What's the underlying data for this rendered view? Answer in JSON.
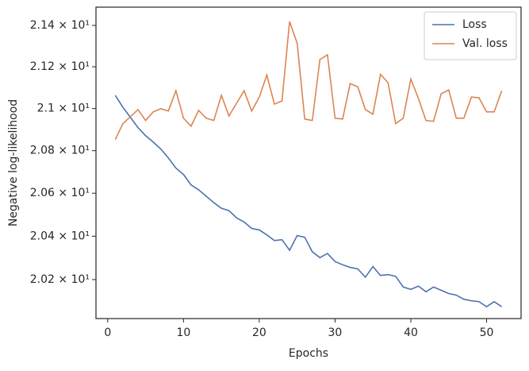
{
  "chart_data": {
    "type": "line",
    "xlabel": "Epochs",
    "ylabel": "Negative log-likelihood",
    "yscale": "log",
    "grid": false,
    "legend": "upper right",
    "x": [
      1,
      2,
      3,
      4,
      5,
      6,
      7,
      8,
      9,
      10,
      11,
      12,
      13,
      14,
      15,
      16,
      17,
      18,
      19,
      20,
      21,
      22,
      23,
      24,
      25,
      26,
      27,
      28,
      29,
      30,
      31,
      32,
      33,
      34,
      35,
      36,
      37,
      38,
      39,
      40,
      41,
      42,
      43,
      44,
      45,
      46,
      47,
      48,
      49,
      50,
      51,
      52
    ],
    "series": [
      {
        "name": "Loss",
        "color": "#4c72b0",
        "values": [
          21.063,
          21.006,
          20.958,
          20.909,
          20.871,
          20.841,
          20.808,
          20.766,
          20.718,
          20.688,
          20.639,
          20.616,
          20.586,
          20.556,
          20.53,
          20.519,
          20.485,
          20.466,
          20.436,
          20.429,
          20.406,
          20.38,
          20.384,
          20.335,
          20.403,
          20.395,
          20.328,
          20.301,
          20.32,
          20.283,
          20.268,
          20.256,
          20.249,
          20.211,
          20.26,
          20.219,
          20.223,
          20.215,
          20.166,
          20.155,
          20.17,
          20.144,
          20.166,
          20.151,
          20.136,
          20.129,
          20.11,
          20.103,
          20.099,
          20.076,
          20.099,
          20.076
        ]
      },
      {
        "name": "Val. loss",
        "color": "#dd8452",
        "values": [
          20.853,
          20.928,
          20.961,
          20.995,
          20.943,
          20.984,
          20.999,
          20.988,
          21.085,
          20.954,
          20.916,
          20.991,
          20.954,
          20.943,
          21.063,
          20.965,
          21.025,
          21.085,
          20.988,
          21.055,
          21.16,
          21.021,
          21.036,
          21.419,
          21.314,
          20.95,
          20.943,
          21.235,
          21.258,
          20.954,
          20.95,
          21.119,
          21.104,
          20.995,
          20.973,
          21.164,
          21.123,
          20.928,
          20.954,
          21.141,
          21.048,
          20.943,
          20.939,
          21.07,
          21.089,
          20.954,
          20.954,
          21.055,
          21.051,
          20.984,
          20.984,
          21.085
        ]
      }
    ],
    "xlim": [
      -1.55,
      54.55
    ],
    "xticks": [
      0,
      10,
      20,
      30,
      40,
      50
    ],
    "ylim": [
      20.022,
      21.489
    ],
    "yticks": [
      {
        "value": 20.2,
        "label": "2.02 × 10¹"
      },
      {
        "value": 20.4,
        "label": "2.04 × 10¹"
      },
      {
        "value": 20.6,
        "label": "2.06 × 10¹"
      },
      {
        "value": 20.8,
        "label": "2.08 × 10¹"
      },
      {
        "value": 21.0,
        "label": "2.1 × 10¹"
      },
      {
        "value": 21.2,
        "label": "2.12 × 10¹"
      },
      {
        "value": 21.4,
        "label": "2.14 × 10¹"
      }
    ]
  }
}
